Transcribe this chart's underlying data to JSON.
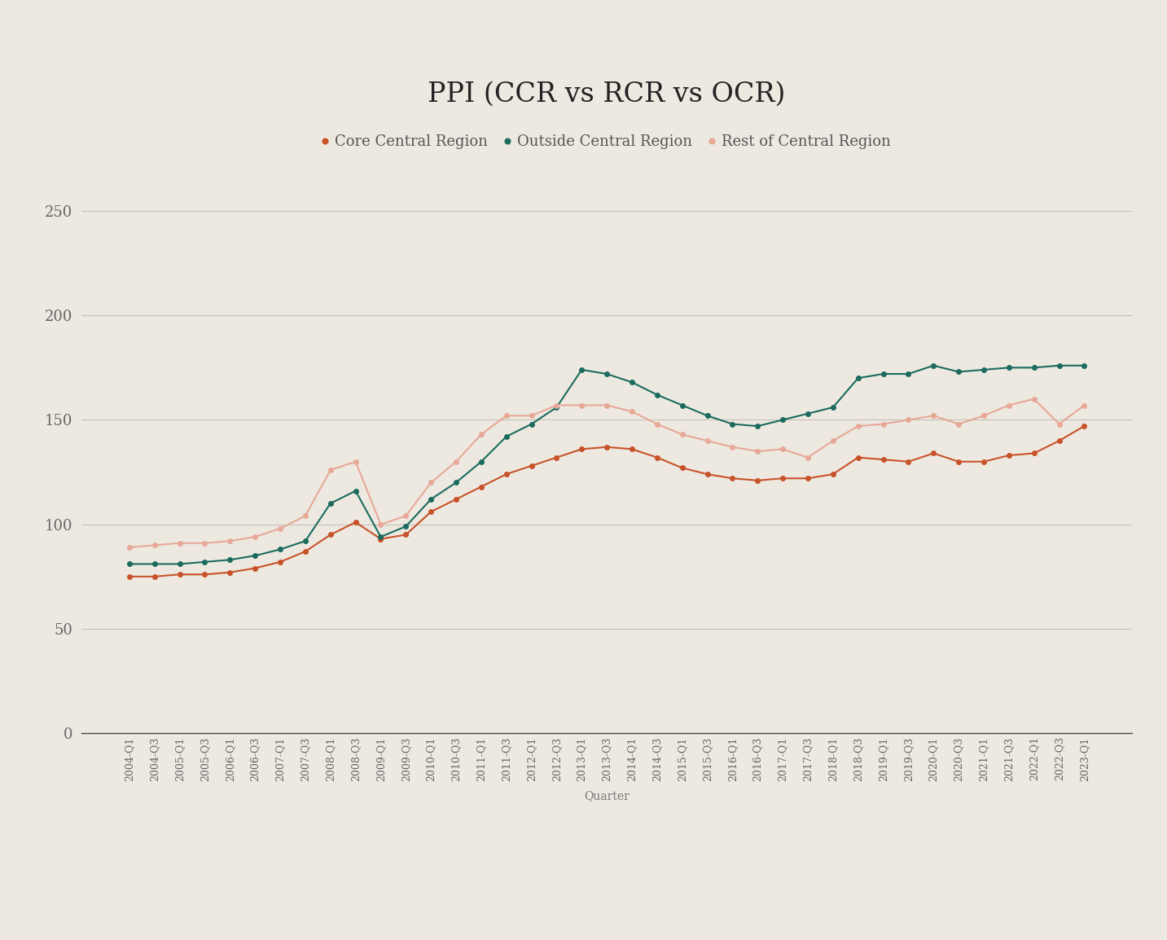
{
  "title": "PPI (CCR vs RCR vs OCR)",
  "xlabel": "Quarter",
  "background_color": "#ede9e1",
  "grid_color": "#c5c1b8",
  "line_color_ccr": "#c8522a",
  "line_color_ocr": "#1b6b5e",
  "line_color_rcr": "#e8a898",
  "legend_labels": [
    "Core Central Region",
    "Outside Central Region",
    "Rest of Central Region"
  ],
  "ylim": [
    0,
    270
  ],
  "yticks": [
    0,
    50,
    100,
    150,
    200,
    250
  ],
  "quarters": [
    "2004-Q1",
    "2004-Q3",
    "2005-Q1",
    "2005-Q3",
    "2006-Q1",
    "2006-Q3",
    "2007-Q1",
    "2007-Q3",
    "2008-Q1",
    "2008-Q3",
    "2009-Q1",
    "2009-Q3",
    "2010-Q1",
    "2010-Q3",
    "2011-Q1",
    "2011-Q3",
    "2012-Q1",
    "2012-Q3",
    "2013-Q1",
    "2013-Q3",
    "2014-Q1",
    "2014-Q3",
    "2015-Q1",
    "2015-Q3",
    "2016-Q1",
    "2016-Q3",
    "2017-Q1",
    "2017-Q3",
    "2018-Q1",
    "2018-Q3",
    "2019-Q1",
    "2019-Q3",
    "2020-Q1",
    "2020-Q3",
    "2021-Q1",
    "2021-Q3",
    "2022-Q1",
    "2022-Q3",
    "2023-Q1"
  ],
  "ccr": [
    75,
    75,
    76,
    76,
    77,
    79,
    82,
    87,
    95,
    101,
    93,
    95,
    106,
    112,
    118,
    124,
    128,
    132,
    136,
    137,
    136,
    132,
    127,
    124,
    122,
    121,
    122,
    122,
    124,
    132,
    131,
    130,
    134,
    130,
    130,
    133,
    134,
    140,
    147
  ],
  "ocr": [
    81,
    81,
    81,
    82,
    83,
    85,
    88,
    92,
    110,
    116,
    94,
    99,
    112,
    120,
    130,
    142,
    148,
    156,
    174,
    172,
    168,
    162,
    157,
    152,
    148,
    147,
    150,
    153,
    156,
    170,
    172,
    172,
    176,
    173,
    174,
    175,
    175,
    176,
    176
  ],
  "rcr": [
    89,
    90,
    91,
    91,
    92,
    94,
    98,
    104,
    126,
    130,
    100,
    104,
    120,
    130,
    143,
    152,
    152,
    157,
    157,
    157,
    154,
    148,
    143,
    140,
    137,
    135,
    136,
    132,
    140,
    147,
    148,
    150,
    152,
    148,
    152,
    157,
    160,
    148,
    157
  ]
}
